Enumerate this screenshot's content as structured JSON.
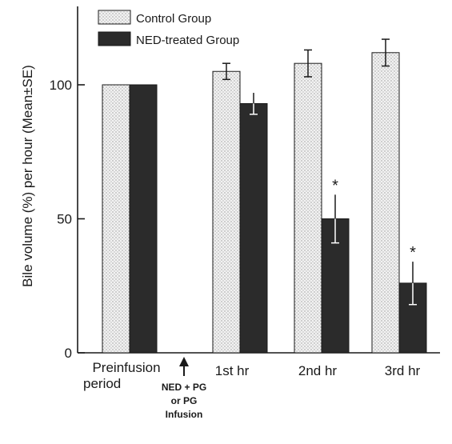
{
  "chart_data": {
    "type": "bar",
    "categories": [
      "Preinfusion period",
      "1st hr",
      "2nd hr",
      "3rd hr"
    ],
    "series": [
      {
        "name": "Control Group",
        "values": [
          100,
          105,
          108,
          112
        ],
        "errors": [
          0,
          3,
          5,
          5
        ],
        "color": "#ededed"
      },
      {
        "name": "NED-treated Group",
        "values": [
          100,
          93,
          50,
          26
        ],
        "errors": [
          0,
          4,
          9,
          8
        ],
        "color": "#2b2b2b"
      }
    ],
    "significance": [
      {
        "series": "NED-treated Group",
        "category": "2nd hr",
        "label": "*"
      },
      {
        "series": "NED-treated Group",
        "category": "3rd hr",
        "label": "*"
      }
    ],
    "ylabel": "Bile volume (%) per hour (Mean±SE)",
    "ylim": [
      0,
      130
    ],
    "yticks": [
      "0",
      "50",
      "100"
    ],
    "legend_position": "top-left",
    "grid": false
  },
  "categories_display": {
    "preinfusion_line1": "Preinfusion",
    "preinfusion_line2": "period",
    "first": "1st   hr",
    "second": "2nd   hr",
    "third": "3rd   hr"
  },
  "annotation": {
    "arrow_glyph": "↑",
    "line1": "NED + PG",
    "line2": "or PG",
    "line3": "Infusion"
  }
}
